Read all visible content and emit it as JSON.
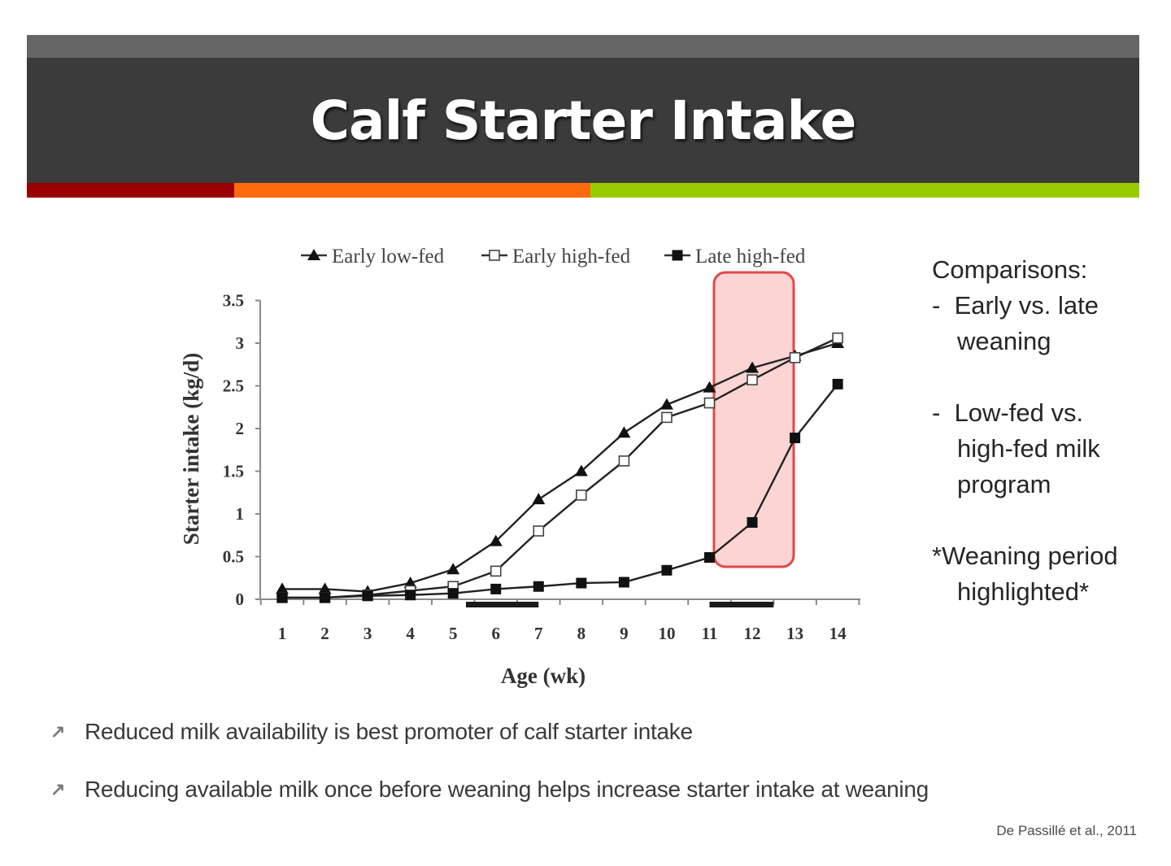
{
  "slide": {
    "title": "Calf Starter Intake",
    "colors": {
      "header_top": "#666666",
      "header_main": "#3b3b3b",
      "stripe": [
        "#990000",
        "#ff6a0d",
        "#99cc00"
      ],
      "highlight_fill": "#fcd4d4",
      "highlight_border": "#e04848"
    }
  },
  "side_notes": {
    "heading": "Comparisons:",
    "item1_dash": "-",
    "item1_line1": "Early vs. late",
    "item1_line2": "weaning",
    "item2_dash": "-",
    "item2_line1": "Low-fed vs.",
    "item2_line2": "high-fed milk",
    "item2_line3": "program",
    "note_line1": "*Weaning period",
    "note_line2": "highlighted*"
  },
  "bullets": [
    {
      "icon": "arrow-up-right-icon",
      "glyph": "↗",
      "text": "Reduced milk availability is best promoter of calf starter intake"
    },
    {
      "icon": "arrow-up-right-icon",
      "glyph": "↗",
      "text": "Reducing available milk once before weaning helps increase starter intake at weaning"
    }
  ],
  "citation": "De Passillé et al., 2011",
  "chart_data": {
    "type": "line",
    "title": "",
    "xlabel": "Age (wk)",
    "ylabel": "Starter intake (kg/d)",
    "x": [
      1,
      2,
      3,
      4,
      5,
      6,
      7,
      8,
      9,
      10,
      11,
      12,
      13,
      14
    ],
    "xticks": [
      "1",
      "2",
      "3",
      "4",
      "5",
      "6",
      "7",
      "8",
      "9",
      "10",
      "11",
      "12",
      "13",
      "14"
    ],
    "yticks": [
      "0",
      "0.5",
      "1",
      "1.5",
      "2",
      "2.5",
      "3",
      "3.5"
    ],
    "ylim": [
      0,
      3.5
    ],
    "grid": false,
    "legend_position": "top",
    "series": [
      {
        "name": "Early low-fed",
        "marker": "filled-triangle",
        "values": [
          0.12,
          0.12,
          0.09,
          0.19,
          0.35,
          0.68,
          1.17,
          1.5,
          1.95,
          2.28,
          2.48,
          2.71,
          2.85,
          3.0
        ]
      },
      {
        "name": "Early high-fed",
        "marker": "open-square",
        "values": [
          0.02,
          0.02,
          0.05,
          0.1,
          0.15,
          0.33,
          0.8,
          1.22,
          1.62,
          2.13,
          2.3,
          2.57,
          2.83,
          3.06
        ]
      },
      {
        "name": "Late high-fed",
        "marker": "filled-square",
        "values": [
          0.02,
          0.02,
          0.04,
          0.05,
          0.07,
          0.12,
          0.15,
          0.19,
          0.2,
          0.34,
          0.49,
          0.9,
          1.89,
          2.52
        ]
      }
    ],
    "annotations": [
      {
        "type": "weaning-bar",
        "x_start": 5.3,
        "x_end": 7.0
      },
      {
        "type": "weaning-bar",
        "x_start": 11.0,
        "x_end": 12.5
      },
      {
        "type": "highlight-box",
        "x_start": 11.0,
        "x_end": 12.9,
        "y_start": 0.4,
        "y_end": 3.8,
        "label": "weaning period"
      }
    ]
  }
}
